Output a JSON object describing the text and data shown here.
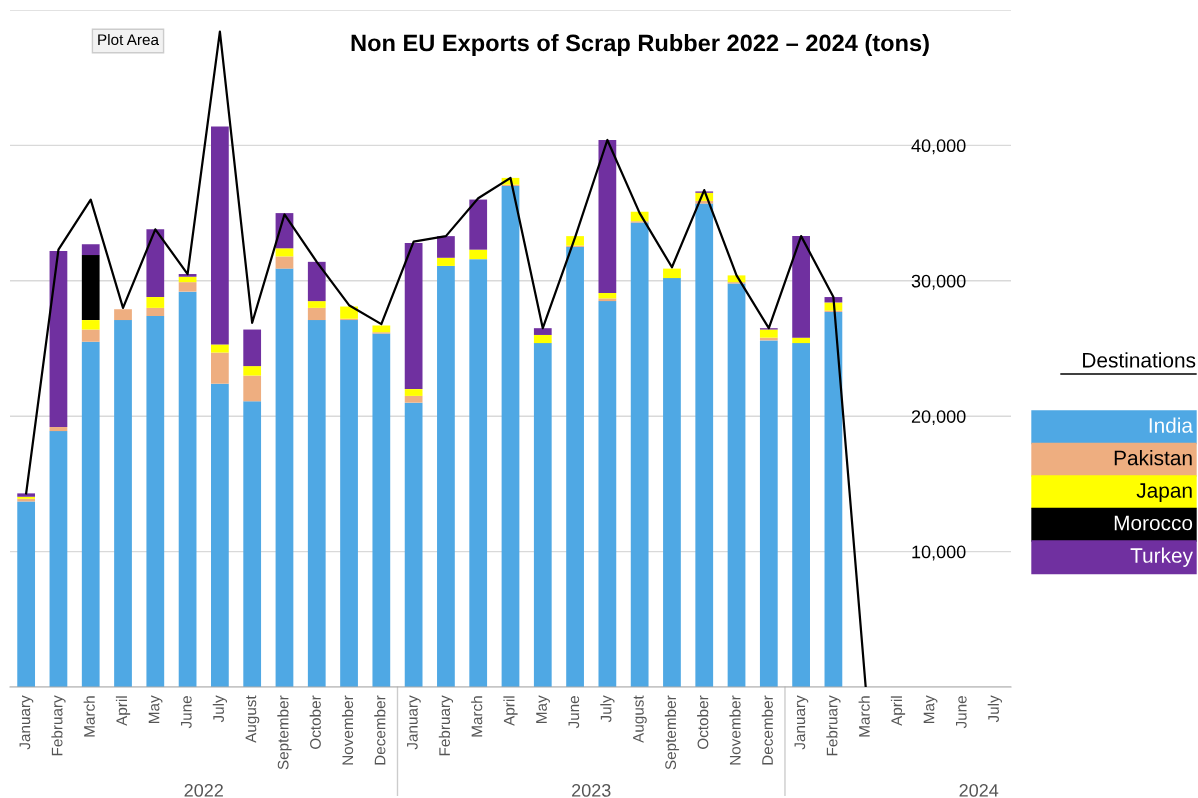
{
  "chart_data": {
    "type": "bar",
    "stacked": true,
    "title": "Non EU Exports of Scrap Rubber 2022 – 2024 (tons)",
    "categories": [
      "January",
      "February",
      "March",
      "April",
      "May",
      "June",
      "July",
      "August",
      "September",
      "October",
      "November",
      "December",
      "January",
      "February",
      "March",
      "April",
      "May",
      "June",
      "July",
      "August",
      "September",
      "October",
      "November",
      "December",
      "January",
      "February",
      "March",
      "April",
      "May",
      "June",
      "July"
    ],
    "series": [
      {
        "name": "India",
        "color": "#4fa8e4",
        "values": [
          13700,
          18900,
          25500,
          27100,
          27400,
          29200,
          22400,
          21100,
          30900,
          27100,
          27100,
          26100,
          21000,
          31100,
          31600,
          37000,
          25400,
          32500,
          28500,
          34300,
          30200,
          35700,
          29800,
          25600,
          25400,
          27700,
          null,
          null,
          null,
          null,
          null
        ]
      },
      {
        "name": "Pakistan",
        "color": "#eeae80",
        "values": [
          200,
          300,
          900,
          800,
          600,
          700,
          2300,
          1900,
          900,
          900,
          100,
          100,
          500,
          0,
          0,
          100,
          0,
          100,
          200,
          100,
          0,
          200,
          100,
          200,
          0,
          100,
          null,
          null,
          null,
          null,
          null
        ]
      },
      {
        "name": "Japan",
        "color": "#ffff00",
        "values": [
          150,
          0,
          700,
          0,
          800,
          400,
          600,
          700,
          600,
          500,
          900,
          500,
          500,
          600,
          700,
          500,
          600,
          700,
          400,
          700,
          700,
          600,
          500,
          600,
          400,
          600,
          null,
          null,
          null,
          null,
          null
        ]
      },
      {
        "name": "Morocco",
        "color": "#000000",
        "values": [
          0,
          0,
          4800,
          0,
          0,
          0,
          0,
          0,
          0,
          0,
          0,
          0,
          0,
          0,
          0,
          0,
          0,
          0,
          0,
          0,
          0,
          0,
          0,
          0,
          0,
          0,
          null,
          null,
          null,
          null,
          null
        ]
      },
      {
        "name": "Turkey",
        "color": "#7030a0",
        "values": [
          250,
          13000,
          800,
          0,
          5000,
          200,
          16100,
          2700,
          2600,
          2900,
          0,
          0,
          10800,
          1600,
          3700,
          0,
          500,
          0,
          11300,
          0,
          0,
          100,
          0,
          100,
          7500,
          400,
          null,
          null,
          null,
          null,
          null
        ]
      },
      {
        "type": "line",
        "color": "#000000",
        "values": [
          14300,
          32300,
          36000,
          28000,
          33800,
          30500,
          48400,
          26900,
          34900,
          31400,
          28200,
          26800,
          32900,
          33300,
          36100,
          37600,
          26500,
          33200,
          40400,
          35000,
          31000,
          36700,
          30400,
          26500,
          33300,
          28800,
          0,
          null,
          null,
          null,
          null
        ]
      }
    ],
    "ylim": [
      0,
      50000
    ],
    "yticks": [
      {
        "value": 0,
        "label": null
      },
      {
        "value": 10000,
        "label": "10,000"
      },
      {
        "value": 20000,
        "label": "20,000"
      },
      {
        "value": 30000,
        "label": "30,000"
      },
      {
        "value": 40000,
        "label": "40,000"
      },
      {
        "value": 50000,
        "label": null
      }
    ],
    "grid": "y",
    "legend": "right",
    "legend_title": "Destinations",
    "annotations": [
      "Plot Area",
      "2022",
      "2023",
      "2024"
    ]
  }
}
